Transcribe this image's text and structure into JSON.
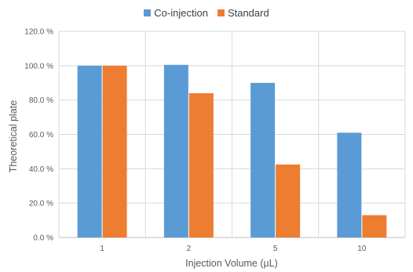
{
  "chart_data": {
    "type": "bar",
    "title": "",
    "xlabel": "Injection Volume (µL)",
    "ylabel": "Theoretical plate",
    "categories": [
      "1",
      "2",
      "5",
      "10"
    ],
    "ylim": [
      0,
      120
    ],
    "yticks": [
      "0.0 %",
      "20.0 %",
      "40.0 %",
      "60.0 %",
      "80.0 %",
      "100.0 %",
      "120.0 %"
    ],
    "grid": true,
    "legend_position": "top-center",
    "series": [
      {
        "name": "Co-injection",
        "color": "#5B9BD5",
        "values": [
          100.0,
          100.5,
          90.0,
          61.0
        ]
      },
      {
        "name": "Standard",
        "color": "#ED7D31",
        "values": [
          100.0,
          84.0,
          42.5,
          13.0
        ]
      }
    ]
  }
}
